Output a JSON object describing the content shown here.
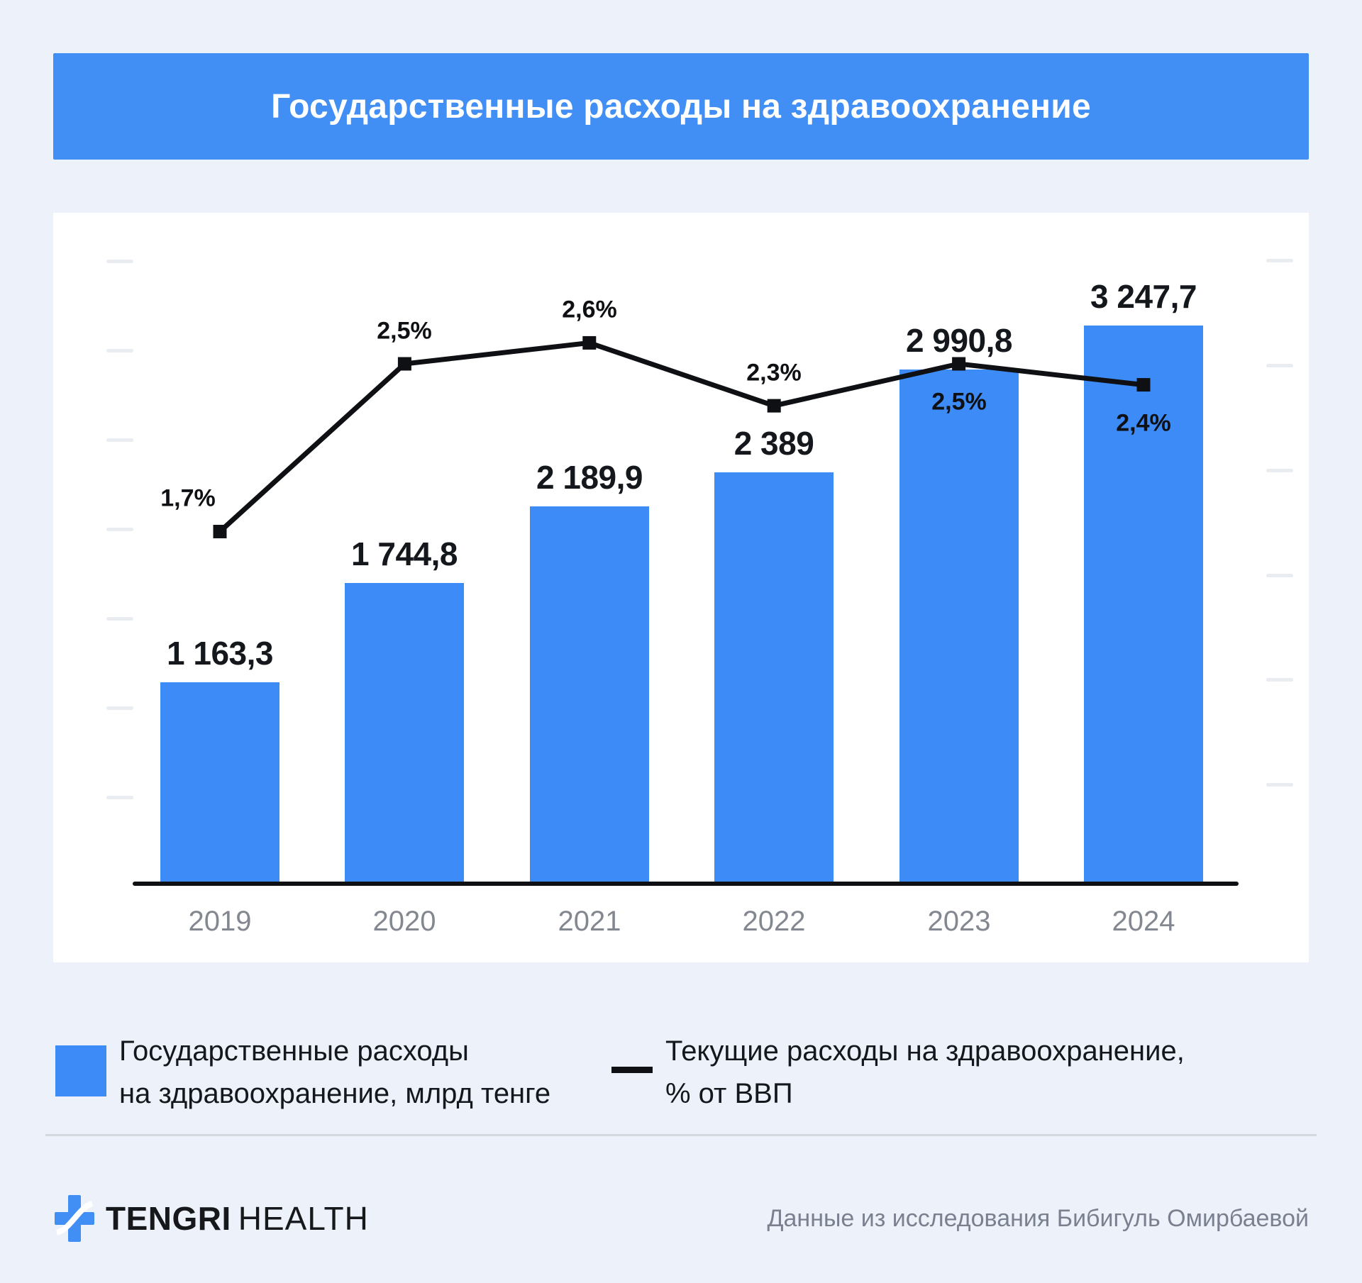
{
  "title": "Государственные расходы на здравоохранение",
  "chart_data": {
    "type": "bar",
    "categories": [
      "2019",
      "2020",
      "2021",
      "2022",
      "2023",
      "2024"
    ],
    "series": [
      {
        "name": "Государственные расходы на здравоохранение, млрд тенге",
        "type": "bar",
        "color": "#3d8bf7",
        "values": [
          1163.3,
          1744.8,
          2189.9,
          2389,
          2990.8,
          3247.7
        ],
        "labels": [
          "1 163,3",
          "1 744,8",
          "2 189,9",
          "2 389",
          "2 990,8",
          "3 247,7"
        ]
      },
      {
        "name": "Текущие расходы на здравоохранение, % от ВВП",
        "type": "line",
        "color": "#0e1013",
        "values": [
          1.7,
          2.5,
          2.6,
          2.3,
          2.5,
          2.4
        ],
        "labels": [
          "1,7%",
          "2,5%",
          "2,6%",
          "2,3%",
          "2,5%",
          "2,4%"
        ],
        "label_side": [
          "above",
          "above",
          "above",
          "above",
          "below",
          "below"
        ]
      }
    ],
    "title": "Государственные расходы на здравоохранение",
    "xlabel": "",
    "ylabel": "",
    "ylim": [
      0,
      3500
    ],
    "y2lim": [
      0,
      3.2
    ],
    "grid": false,
    "legend_position": "bottom"
  },
  "legend": {
    "bars": {
      "line1": "Государственные расходы",
      "line2": "на здравоохранение, млрд тенге"
    },
    "line": {
      "line1": "Текущие расходы на здравоохранение,",
      "line2": "% от ВВП"
    }
  },
  "footer": {
    "brand_bold": "TENGRI",
    "brand_light": "HEALTH",
    "source": "Данные из исследования Бибигуль Омирбаевой"
  },
  "colors": {
    "background": "#edf2fa",
    "banner": "#418ef5",
    "bar": "#3d8bf7",
    "line": "#0e1013",
    "card": "#ffffff"
  }
}
